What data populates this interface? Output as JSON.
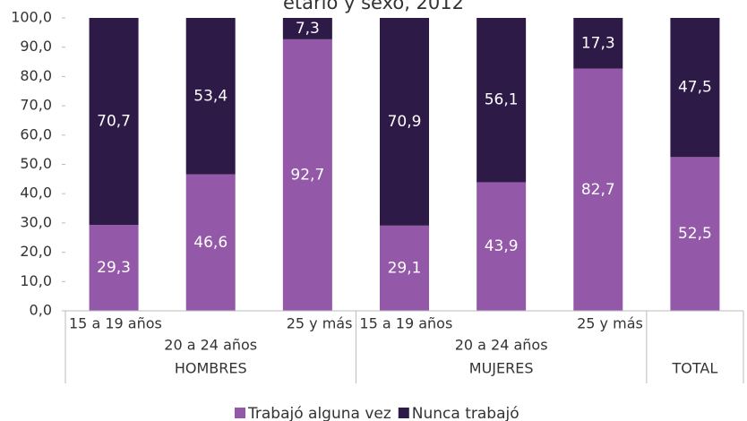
{
  "chart_data": {
    "type": "stacked_bar",
    "title": "etario y sexo, 2012",
    "categories": [
      "15 a 19 años",
      "20 a 24 años",
      "25 y más",
      "15 a 19 años",
      "20 a 24 años",
      "25 y más",
      null
    ],
    "groups": [
      {
        "label": "HOMBRES",
        "size": 3
      },
      {
        "label": "MUJERES",
        "size": 3
      },
      {
        "label": "TOTAL",
        "size": 1
      }
    ],
    "series": [
      {
        "name": "Trabajó alguna vez",
        "color": "#9458a8",
        "values": [
          29.3,
          46.6,
          92.7,
          29.1,
          43.9,
          82.7,
          52.5
        ],
        "value_labels": [
          "29,3",
          "46,6",
          "92,7",
          "29,1",
          "43,9",
          "82,7",
          "52,5"
        ]
      },
      {
        "name": "Nunca trabajó",
        "color": "#2e1a47",
        "values": [
          70.7,
          53.4,
          7.3,
          70.9,
          56.1,
          17.3,
          47.5
        ],
        "value_labels": [
          "70,7",
          "53,4",
          "7,3",
          "70,9",
          "56,1",
          "17,3",
          "47,5"
        ]
      }
    ],
    "ylim": [
      0,
      100
    ],
    "yticks": [
      {
        "value": 0,
        "label": "0,0"
      },
      {
        "value": 10,
        "label": "10,0"
      },
      {
        "value": 20,
        "label": "20,0"
      },
      {
        "value": 30,
        "label": "30,0"
      },
      {
        "value": 40,
        "label": "40,0"
      },
      {
        "value": 50,
        "label": "50,0"
      },
      {
        "value": 60,
        "label": "60,0"
      },
      {
        "value": 70,
        "label": "70,0"
      },
      {
        "value": 80,
        "label": "80,0"
      },
      {
        "value": 90,
        "label": "90,0"
      },
      {
        "value": 100,
        "label": "100,0"
      }
    ],
    "legend": "bottom"
  }
}
